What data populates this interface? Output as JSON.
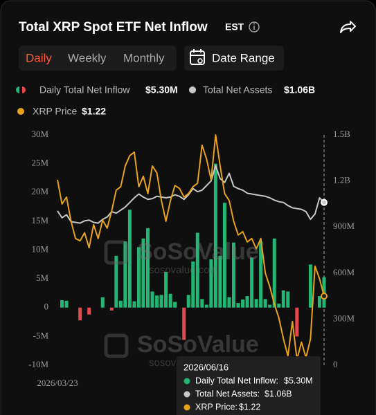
{
  "header": {
    "title": "Total XRP Spot ETF Net Inflow",
    "timezone": "EST"
  },
  "tabs": [
    "Daily",
    "Weekly",
    "Monthly"
  ],
  "active_tab": 0,
  "date_range": "Date Range",
  "watermark": {
    "brand": "SoSoValue",
    "site": "sosovalue.com"
  },
  "chart_data": {
    "type": "combo",
    "categories": [
      "2026/03/23",
      null,
      null,
      null,
      null,
      null,
      null,
      null,
      null,
      null,
      null,
      null,
      null,
      null,
      null,
      null,
      null,
      null,
      null,
      null,
      null,
      null,
      null,
      null,
      null,
      null,
      null,
      null,
      null,
      null,
      null,
      null,
      null,
      null,
      null,
      null,
      null,
      null,
      null,
      null,
      null,
      null,
      null,
      null,
      null,
      null,
      null,
      null,
      null,
      null,
      null,
      null,
      null,
      null,
      null,
      null,
      null,
      null,
      null,
      null
    ],
    "series": [
      {
        "name": "Daily Total Net Inflow",
        "type": "bar",
        "axis": "y",
        "color": "#22b573",
        "negative_color": "#e5484d",
        "current": "$5.30M",
        "values": [
          0,
          1.3,
          1.2,
          0,
          0,
          -2.2,
          0,
          -1.2,
          0,
          0,
          1.8,
          0,
          -0.5,
          9.0,
          1.2,
          11.5,
          17.0,
          1.1,
          10.5,
          12.0,
          13.8,
          2.8,
          2.1,
          2.2,
          6.2,
          2.4,
          1.0,
          0,
          -5.6,
          2.2,
          8.0,
          13.0,
          1.5,
          0.5,
          8.4,
          25.0,
          9.0,
          18.2,
          1.8,
          11.3,
          0.8,
          1.4,
          2.0,
          8.7,
          1.5,
          11.5,
          1.5,
          0.5,
          12.0,
          0.7,
          3.0,
          2.8,
          0,
          -5.0,
          0,
          0,
          7.5,
          0,
          2.0,
          5.3
        ]
      },
      {
        "name": "Total Net Assets",
        "type": "line",
        "axis": "y2",
        "color": "#c8c8c8",
        "current": "$1.06B",
        "values": [
          1005,
          960,
          980,
          935,
          930,
          925,
          940,
          945,
          930,
          925,
          950,
          965,
          1000,
          990,
          1010,
          1030,
          1060,
          1090,
          1115,
          1095,
          1080,
          1085,
          1100,
          1095,
          1090,
          1095,
          1110,
          1100,
          1080,
          1110,
          1150,
          1130,
          1140,
          1170,
          1200,
          1300,
          1215,
          1190,
          1250,
          1165,
          1150,
          1140,
          1120,
          1115,
          1110,
          1105,
          1100,
          1090,
          1075,
          1065,
          1060,
          1040,
          1025,
          1020,
          1015,
          1000,
          950,
          985,
          1090,
          1060
        ]
      },
      {
        "name": "XRP Price",
        "type": "line",
        "axis": "y3",
        "color": "#e8a21c",
        "current": "$1.22",
        "values": [
          1.422,
          1.38,
          1.392,
          1.35,
          1.32,
          1.316,
          1.33,
          1.304,
          1.344,
          1.32,
          1.352,
          1.338,
          1.368,
          1.404,
          1.41,
          1.446,
          1.464,
          1.47,
          1.41,
          1.428,
          1.398,
          1.446,
          1.434,
          1.386,
          1.35,
          1.386,
          1.412,
          1.407,
          1.392,
          1.398,
          1.41,
          1.416,
          1.482,
          1.458,
          1.422,
          1.5,
          1.446,
          1.398,
          1.386,
          1.35,
          1.326,
          1.332,
          1.314,
          1.32,
          1.302,
          1.32,
          1.26,
          1.236,
          1.206,
          1.182,
          1.146,
          1.116,
          1.176,
          1.11,
          1.14,
          1.113,
          1.146,
          1.272,
          1.25,
          1.22
        ]
      }
    ],
    "ylim": [
      -10,
      30
    ],
    "yticks": [
      {
        "value": 30,
        "label": "30M"
      },
      {
        "value": 25,
        "label": "25M"
      },
      {
        "value": 20,
        "label": "20M"
      },
      {
        "value": 15,
        "label": "15M"
      },
      {
        "value": 10,
        "label": "10M"
      },
      {
        "value": 5,
        "label": "5M"
      },
      0,
      {
        "value": -5,
        "label": "-5M"
      },
      {
        "value": -10,
        "label": "-10M"
      }
    ],
    "y2lim": [
      0,
      1500
    ],
    "y2ticks": [
      {
        "value": 1500,
        "label": "1.5B"
      },
      {
        "value": 1200,
        "label": "1.2B"
      },
      {
        "value": 900,
        "label": "900M"
      },
      {
        "value": 600,
        "label": "600M"
      },
      {
        "value": 300,
        "label": "300M"
      },
      0
    ],
    "y3lim": [
      1.1,
      1.5
    ],
    "grid": false
  },
  "tooltip": {
    "date": "2026/06/16",
    "items": [
      {
        "name": "Daily Total Net Inflow:",
        "value": "$5.30M"
      },
      {
        "name": "Total Net Assets:",
        "value": "$1.06B"
      },
      {
        "name": "XRP Price:",
        "value": "$1.22"
      }
    ]
  }
}
